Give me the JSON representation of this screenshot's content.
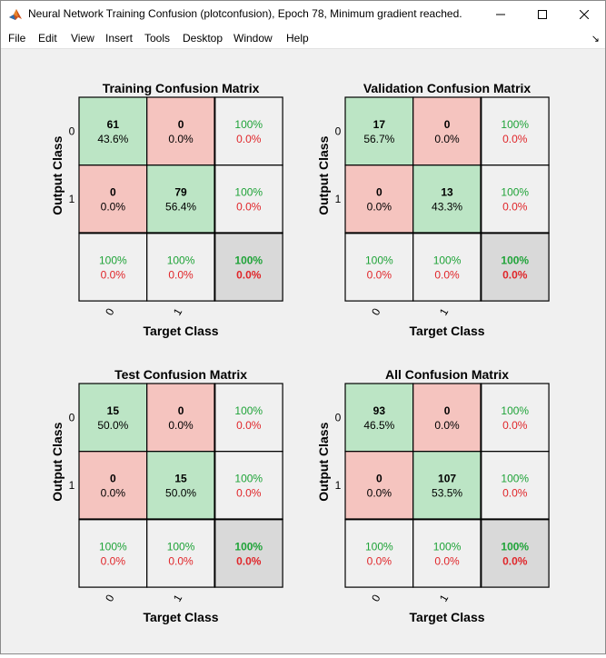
{
  "window": {
    "title": "Neural Network Training Confusion (plotconfusion), Epoch 78, Minimum gradient reached."
  },
  "menu": [
    "File",
    "Edit",
    "View",
    "Insert",
    "Tools",
    "Desktop",
    "Window",
    "Help"
  ],
  "icons": {
    "app": "matlab-logo-icon",
    "minimize": "minimize-icon",
    "maximize": "maximize-icon",
    "close": "close-icon",
    "dock": "dock-arrow-icon"
  },
  "colors": {
    "correct_cell": "#bce5c5",
    "wrong_cell": "#f5c4bf",
    "summary_cell": "#f0f0f0",
    "overall_cell": "#d9d9d9",
    "green_text": "#1fa338",
    "red_text": "#e0262a"
  },
  "chart_data": [
    {
      "type": "confusion_matrix",
      "title": "Training Confusion Matrix",
      "xlabel": "Target Class",
      "ylabel": "Output Class",
      "classes": [
        "0",
        "1"
      ],
      "cells": [
        [
          {
            "count": "61",
            "pct": "43.6%"
          },
          {
            "count": "0",
            "pct": "0.0%"
          },
          {
            "good": "100%",
            "bad": "0.0%"
          }
        ],
        [
          {
            "count": "0",
            "pct": "0.0%"
          },
          {
            "count": "79",
            "pct": "56.4%"
          },
          {
            "good": "100%",
            "bad": "0.0%"
          }
        ],
        [
          {
            "good": "100%",
            "bad": "0.0%"
          },
          {
            "good": "100%",
            "bad": "0.0%"
          },
          {
            "good": "100%",
            "bad": "0.0%"
          }
        ]
      ]
    },
    {
      "type": "confusion_matrix",
      "title": "Validation Confusion Matrix",
      "xlabel": "Target Class",
      "ylabel": "Output Class",
      "classes": [
        "0",
        "1"
      ],
      "cells": [
        [
          {
            "count": "17",
            "pct": "56.7%"
          },
          {
            "count": "0",
            "pct": "0.0%"
          },
          {
            "good": "100%",
            "bad": "0.0%"
          }
        ],
        [
          {
            "count": "0",
            "pct": "0.0%"
          },
          {
            "count": "13",
            "pct": "43.3%"
          },
          {
            "good": "100%",
            "bad": "0.0%"
          }
        ],
        [
          {
            "good": "100%",
            "bad": "0.0%"
          },
          {
            "good": "100%",
            "bad": "0.0%"
          },
          {
            "good": "100%",
            "bad": "0.0%"
          }
        ]
      ]
    },
    {
      "type": "confusion_matrix",
      "title": "Test Confusion Matrix",
      "xlabel": "Target Class",
      "ylabel": "Output Class",
      "classes": [
        "0",
        "1"
      ],
      "cells": [
        [
          {
            "count": "15",
            "pct": "50.0%"
          },
          {
            "count": "0",
            "pct": "0.0%"
          },
          {
            "good": "100%",
            "bad": "0.0%"
          }
        ],
        [
          {
            "count": "0",
            "pct": "0.0%"
          },
          {
            "count": "15",
            "pct": "50.0%"
          },
          {
            "good": "100%",
            "bad": "0.0%"
          }
        ],
        [
          {
            "good": "100%",
            "bad": "0.0%"
          },
          {
            "good": "100%",
            "bad": "0.0%"
          },
          {
            "good": "100%",
            "bad": "0.0%"
          }
        ]
      ]
    },
    {
      "type": "confusion_matrix",
      "title": "All Confusion Matrix",
      "xlabel": "Target Class",
      "ylabel": "Output Class",
      "classes": [
        "0",
        "1"
      ],
      "cells": [
        [
          {
            "count": "93",
            "pct": "46.5%"
          },
          {
            "count": "0",
            "pct": "0.0%"
          },
          {
            "good": "100%",
            "bad": "0.0%"
          }
        ],
        [
          {
            "count": "0",
            "pct": "0.0%"
          },
          {
            "count": "107",
            "pct": "53.5%"
          },
          {
            "good": "100%",
            "bad": "0.0%"
          }
        ],
        [
          {
            "good": "100%",
            "bad": "0.0%"
          },
          {
            "good": "100%",
            "bad": "0.0%"
          },
          {
            "good": "100%",
            "bad": "0.0%"
          }
        ]
      ]
    }
  ]
}
